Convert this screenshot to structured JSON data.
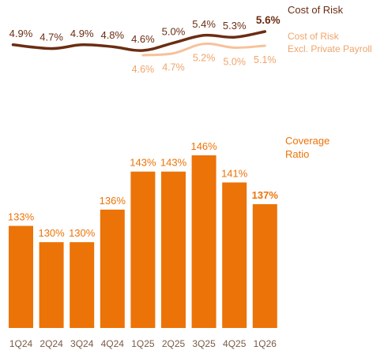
{
  "chart_data": [
    {
      "type": "line",
      "categories": [
        "1Q24",
        "2Q24",
        "3Q24",
        "4Q24",
        "1Q25",
        "2Q25",
        "3Q25",
        "4Q25",
        "1Q26"
      ],
      "series": [
        {
          "name": "Cost of Risk",
          "values": [
            4.9,
            4.7,
            4.9,
            4.8,
            4.6,
            5.0,
            5.4,
            5.3,
            5.6
          ],
          "labels": [
            "4.9%",
            "4.7%",
            "4.9%",
            "4.8%",
            "4.6%",
            "5.0%",
            "5.4%",
            "5.3%",
            "5.6%"
          ],
          "color": "#6b2d12"
        },
        {
          "name": "Cost of Risk Excl. Private Payroll",
          "name_lines": [
            "Cost of Risk",
            "Excl. Private Payroll"
          ],
          "values": [
            null,
            null,
            null,
            null,
            4.6,
            4.7,
            5.2,
            5.0,
            5.1
          ],
          "labels": [
            "",
            "",
            "",
            "",
            "4.6%",
            "4.7%",
            "5.2%",
            "5.0%",
            "5.1%"
          ],
          "color": "#f6c29a"
        }
      ]
    },
    {
      "type": "bar",
      "categories": [
        "1Q24",
        "2Q24",
        "3Q24",
        "4Q24",
        "1Q25",
        "2Q25",
        "3Q25",
        "4Q25",
        "1Q26"
      ],
      "series": [
        {
          "name": "Coverage Ratio",
          "name_lines": [
            "Coverage",
            "Ratio"
          ],
          "values": [
            133,
            130,
            130,
            136,
            143,
            143,
            146,
            141,
            137
          ],
          "labels": [
            "133%",
            "130%",
            "130%",
            "136%",
            "143%",
            "143%",
            "146%",
            "141%",
            "137%"
          ],
          "color": "#ec7308"
        }
      ],
      "highlight_last": true
    }
  ],
  "colors": {
    "bar": "#ec7308",
    "bar_label": "#ec7308",
    "line_main": "#6b2d12",
    "line_excl": "#f6c29a",
    "axis_text": "#7a5a46"
  }
}
